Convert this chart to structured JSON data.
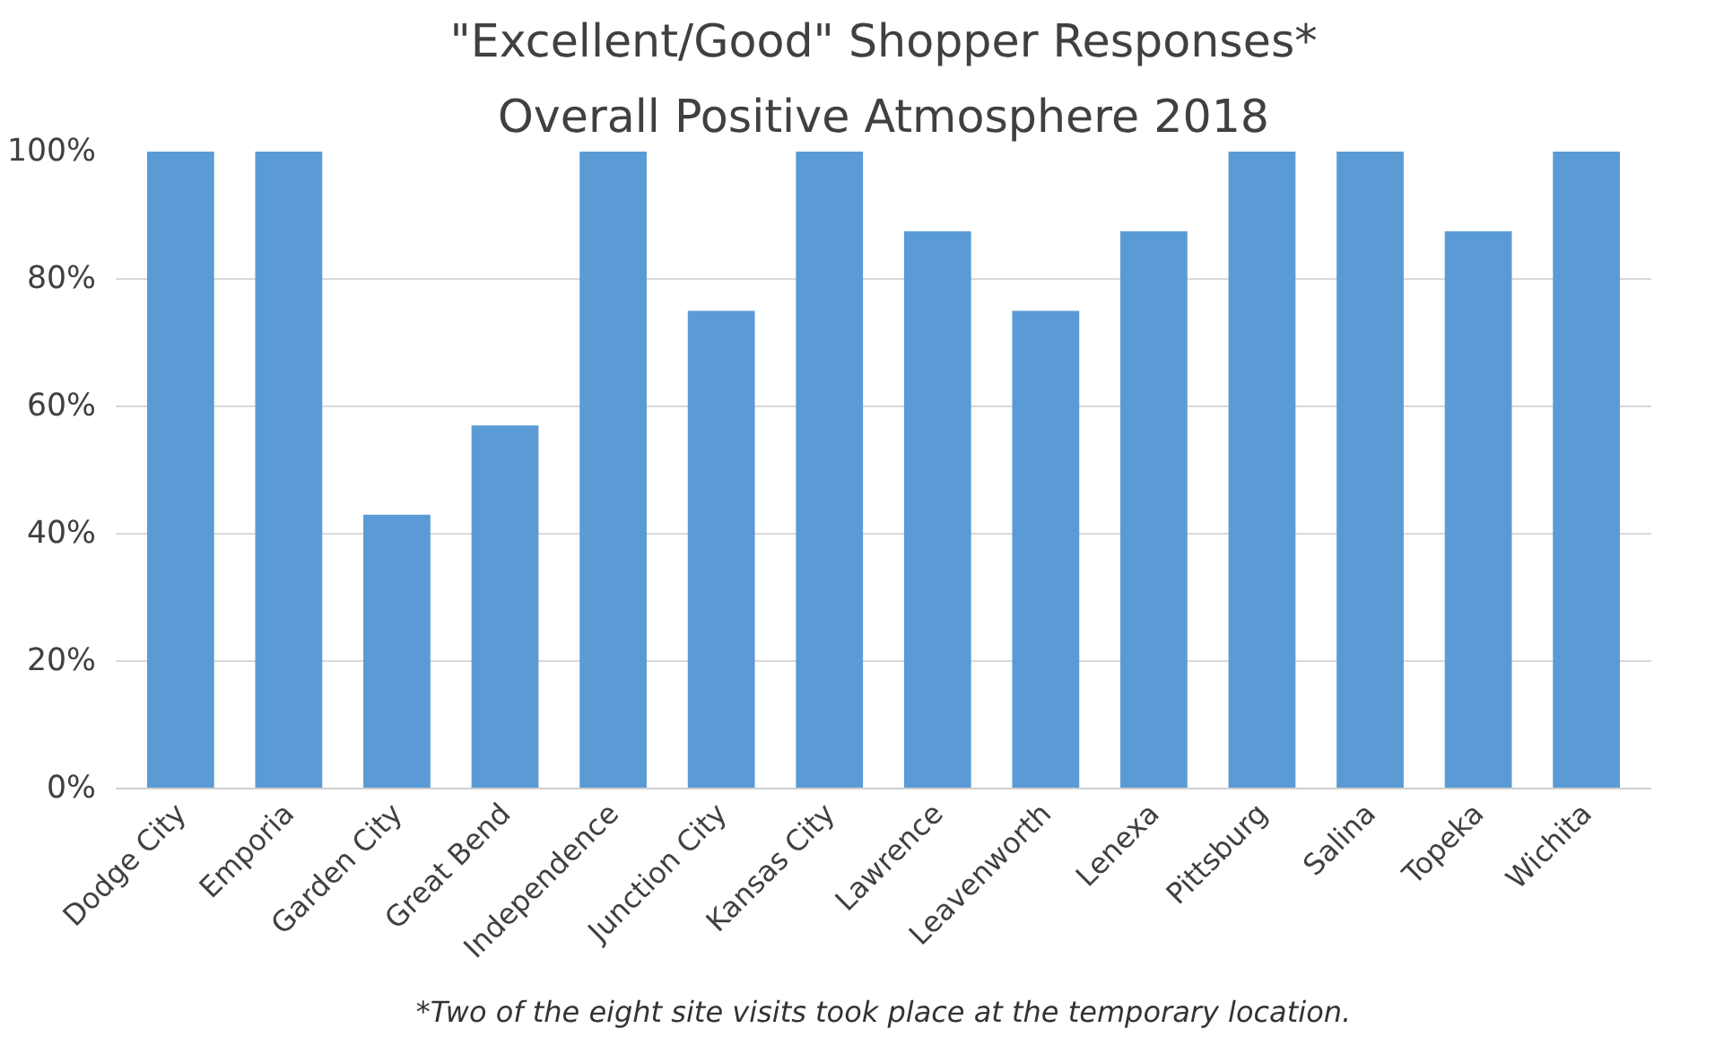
{
  "chart_data": {
    "type": "bar",
    "title": "\"Excellent/Good\" Shopper Responses*",
    "subtitle": "Overall Positive Atmosphere 2018",
    "categories": [
      "Dodge City",
      "Emporia",
      "Garden City",
      "Great Bend",
      "Independence",
      "Junction City",
      "Kansas City",
      "Lawrence",
      "Leavenworth",
      "Lenexa",
      "Pittsburg",
      "Salina",
      "Topeka",
      "Wichita"
    ],
    "values": [
      100,
      100,
      43,
      57,
      100,
      75,
      100,
      87.5,
      75,
      87.5,
      100,
      100,
      87.5,
      100
    ],
    "color": "#5b9bd5",
    "ylim": [
      0,
      100
    ],
    "yticks": [
      {
        "value": 0,
        "label": "0%"
      },
      {
        "value": 20,
        "label": "20%"
      },
      {
        "value": 40,
        "label": "40%"
      },
      {
        "value": 60,
        "label": "60%"
      },
      {
        "value": 80,
        "label": "80%"
      },
      {
        "value": 100,
        "label": "100%"
      }
    ],
    "grid": "y",
    "annotations": [
      "*Two of the eight site visits took place at the temporary location."
    ]
  }
}
